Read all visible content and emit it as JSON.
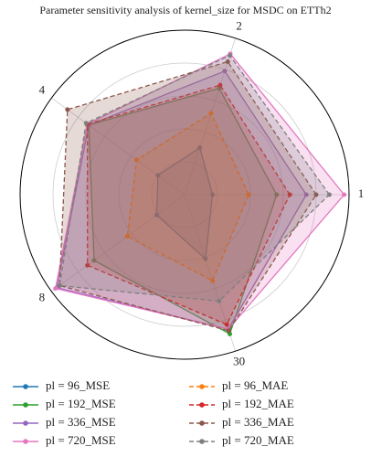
{
  "chart_data": {
    "type": "radar",
    "title": "Parameter sensitivity analysis of kernel_size for MSDC on ETTh2",
    "categories": [
      "1",
      "2",
      "4",
      "8",
      "30"
    ],
    "rlim": [
      0,
      1
    ],
    "rticks": [
      0.2,
      0.4,
      0.6,
      0.8
    ],
    "grid": true,
    "legend_columns": 2,
    "series": [
      {
        "name": "pl = 96_MSE",
        "color": "#1f77b4",
        "linestyle": "solid",
        "values": [
          0.17,
          0.3,
          0.2,
          0.21,
          0.41
        ]
      },
      {
        "name": "pl = 192_MSE",
        "color": "#2ca02c",
        "linestyle": "solid",
        "values": [
          0.56,
          0.68,
          0.72,
          0.68,
          0.89
        ]
      },
      {
        "name": "pl = 336_MSE",
        "color": "#9467bd",
        "linestyle": "solid",
        "values": [
          0.74,
          0.79,
          0.72,
          0.96,
          0.86
        ]
      },
      {
        "name": "pl = 720_MSE",
        "color": "#e377c2",
        "linestyle": "solid",
        "values": [
          0.97,
          0.9,
          0.73,
          0.97,
          0.86
        ]
      },
      {
        "name": "pl = 96_MAE",
        "color": "#ff7f0e",
        "linestyle": "dashed",
        "values": [
          0.39,
          0.52,
          0.36,
          0.43,
          0.55
        ]
      },
      {
        "name": "pl = 192_MAE",
        "color": "#d62728",
        "linestyle": "dashed",
        "values": [
          0.64,
          0.7,
          0.73,
          0.73,
          0.83
        ]
      },
      {
        "name": "pl = 336_MAE",
        "color": "#8c564b",
        "linestyle": "dashed",
        "values": [
          0.8,
          0.85,
          0.88,
          0.94,
          0.87
        ]
      },
      {
        "name": "pl = 720_MAE",
        "color": "#7f7f7f",
        "linestyle": "dashed",
        "values": [
          0.88,
          0.89,
          0.74,
          0.94,
          0.68
        ]
      }
    ]
  }
}
